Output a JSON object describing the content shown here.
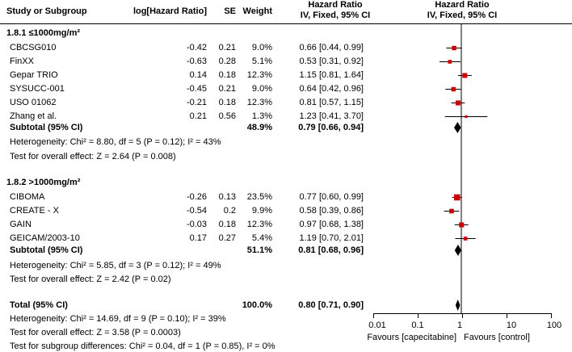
{
  "header": {
    "study": "Study or Subgroup",
    "loghr": "log[Hazard Ratio]",
    "se": "SE",
    "weight": "Weight",
    "hr_title": "Hazard Ratio",
    "hr_method": "IV, Fixed, 95% CI",
    "plot_title": "Hazard Ratio",
    "plot_method": "IV, Fixed, 95% CI"
  },
  "groups": [
    {
      "title": "1.8.1 ≤1000mg/m²",
      "studies": [
        {
          "name": "CBCSG010",
          "loghr": "-0.42",
          "se": "0.21",
          "weight": "9.0%",
          "ci": "0.66 [0.44, 0.99]"
        },
        {
          "name": "FinXX",
          "loghr": "-0.63",
          "se": "0.28",
          "weight": "5.1%",
          "ci": "0.53 [0.31, 0.92]"
        },
        {
          "name": "Gepar TRIO",
          "loghr": "0.14",
          "se": "0.18",
          "weight": "12.3%",
          "ci": "1.15 [0.81, 1.64]"
        },
        {
          "name": "SYSUCC-001",
          "loghr": "-0.45",
          "se": "0.21",
          "weight": "9.0%",
          "ci": "0.64 [0.42, 0.96]"
        },
        {
          "name": "USO 01062",
          "loghr": "-0.21",
          "se": "0.18",
          "weight": "12.3%",
          "ci": "0.81 [0.57, 1.15]"
        },
        {
          "name": "Zhang et al.",
          "loghr": "0.21",
          "se": "0.56",
          "weight": "1.3%",
          "ci": "1.23 [0.41, 3.70]"
        }
      ],
      "subtotal": {
        "label": "Subtotal (95% CI)",
        "weight": "48.9%",
        "ci": "0.79 [0.66, 0.94]"
      },
      "heterogeneity": "Heterogeneity: Chi² = 8.80, df = 5 (P = 0.12); I² = 43%",
      "overall": "Test for overall effect: Z = 2.64 (P = 0.008)"
    },
    {
      "title": "1.8.2 >1000mg/m²",
      "studies": [
        {
          "name": "CIBOMA",
          "loghr": "-0.26",
          "se": "0.13",
          "weight": "23.5%",
          "ci": "0.77 [0.60, 0.99]"
        },
        {
          "name": "CREATE - X",
          "loghr": "-0.54",
          "se": "0.2",
          "weight": "9.9%",
          "ci": "0.58 [0.39, 0.86]"
        },
        {
          "name": "GAIN",
          "loghr": "-0.03",
          "se": "0.18",
          "weight": "12.3%",
          "ci": "0.97 [0.68, 1.38]"
        },
        {
          "name": "GEICAM/2003-10",
          "loghr": "0.17",
          "se": "0.27",
          "weight": "5.4%",
          "ci": "1.19 [0.70, 2.01]"
        }
      ],
      "subtotal": {
        "label": "Subtotal (95% CI)",
        "weight": "51.1%",
        "ci": "0.81 [0.68, 0.96]"
      },
      "heterogeneity": "Heterogeneity: Chi² = 5.85, df = 3 (P = 0.12); I² = 49%",
      "overall": "Test for overall effect: Z = 2.42 (P = 0.02)"
    }
  ],
  "total": {
    "label": "Total (95% CI)",
    "weight": "100.0%",
    "ci": "0.80 [0.71, 0.90]",
    "heterogeneity": "Heterogeneity: Chi² = 14.69, df = 9 (P = 0.10); I² = 39%",
    "overall": "Test for overall effect: Z = 3.58 (P = 0.0003)",
    "subgroup": "Test for subgroup differences: Chi² = 0.04, df = 1 (P = 0.85), I² = 0%"
  },
  "axis": {
    "ticks": [
      "0.01",
      "0.1",
      "1",
      "10",
      "100"
    ],
    "favours_left": "Favours [capecitabine]",
    "favours_right": "Favours [control]"
  },
  "chart_data": {
    "type": "forest",
    "scale": "log",
    "xlim": [
      0.01,
      100
    ],
    "reference_line": 1,
    "marker_color": "#cc0000",
    "studies": [
      {
        "name": "CBCSG010",
        "hr": 0.66,
        "lo": 0.44,
        "hi": 0.99,
        "weight": 9.0
      },
      {
        "name": "FinXX",
        "hr": 0.53,
        "lo": 0.31,
        "hi": 0.92,
        "weight": 5.1
      },
      {
        "name": "Gepar TRIO",
        "hr": 1.15,
        "lo": 0.81,
        "hi": 1.64,
        "weight": 12.3
      },
      {
        "name": "SYSUCC-001",
        "hr": 0.64,
        "lo": 0.42,
        "hi": 0.96,
        "weight": 9.0
      },
      {
        "name": "USO 01062",
        "hr": 0.81,
        "lo": 0.57,
        "hi": 1.15,
        "weight": 12.3
      },
      {
        "name": "Zhang et al.",
        "hr": 1.23,
        "lo": 0.41,
        "hi": 3.7,
        "weight": 1.3
      },
      {
        "name": "CIBOMA",
        "hr": 0.77,
        "lo": 0.6,
        "hi": 0.99,
        "weight": 23.5
      },
      {
        "name": "CREATE - X",
        "hr": 0.58,
        "lo": 0.39,
        "hi": 0.86,
        "weight": 9.9
      },
      {
        "name": "GAIN",
        "hr": 0.97,
        "lo": 0.68,
        "hi": 1.38,
        "weight": 12.3
      },
      {
        "name": "GEICAM/2003-10",
        "hr": 1.19,
        "lo": 0.7,
        "hi": 2.01,
        "weight": 5.4
      }
    ],
    "pooled": [
      {
        "name": "Subtotal 1.8.1",
        "hr": 0.79,
        "lo": 0.66,
        "hi": 0.94
      },
      {
        "name": "Subtotal 1.8.2",
        "hr": 0.81,
        "lo": 0.68,
        "hi": 0.96
      },
      {
        "name": "Total",
        "hr": 0.8,
        "lo": 0.71,
        "hi": 0.9
      }
    ]
  }
}
